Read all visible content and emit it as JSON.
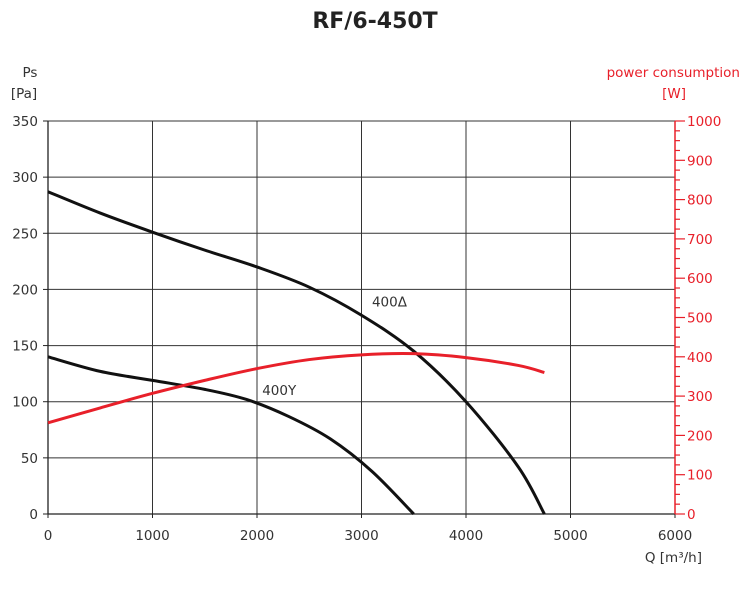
{
  "chart_data": {
    "type": "line",
    "title": "RF/6-450T",
    "x_axis": {
      "label": "Q [m³/h]",
      "range": [
        0,
        6000
      ],
      "ticks": [
        0,
        1000,
        2000,
        3000,
        4000,
        5000,
        6000
      ],
      "grid": true
    },
    "y_axis_left": {
      "label_line1": "Ps",
      "label_line2": "[Pa]",
      "range": [
        0,
        350
      ],
      "ticks": [
        0,
        50,
        100,
        150,
        200,
        250,
        300,
        350
      ],
      "grid": true,
      "color": "#222222"
    },
    "y_axis_right": {
      "label_line1": "power consumption",
      "label_line2": "[W]",
      "range": [
        0,
        1000
      ],
      "ticks": [
        0,
        100,
        200,
        300,
        400,
        500,
        600,
        700,
        800,
        900,
        1000
      ],
      "minor_tick_step": 25,
      "color": "#e8202a"
    },
    "series": [
      {
        "name": "400Δ",
        "axis": "left",
        "color": "#111111",
        "x": [
          0,
          500,
          1000,
          1500,
          2000,
          2500,
          3000,
          3500,
          4000,
          4500,
          4750
        ],
        "y": [
          287,
          268,
          251,
          235,
          220,
          202,
          177,
          145,
          100,
          42,
          0
        ]
      },
      {
        "name": "400Y",
        "axis": "left",
        "color": "#111111",
        "x": [
          0,
          500,
          1000,
          1500,
          1900,
          2300,
          2700,
          3100,
          3500
        ],
        "y": [
          140,
          127,
          119,
          111,
          102,
          87,
          67,
          38,
          0
        ]
      },
      {
        "name": "",
        "axis": "right",
        "color": "#e8202a",
        "x": [
          0,
          500,
          1000,
          1500,
          2000,
          2500,
          3000,
          3500,
          4000,
          4500,
          4750
        ],
        "y": [
          232,
          270,
          307,
          340,
          370,
          393,
          405,
          408,
          398,
          378,
          360
        ]
      }
    ],
    "annotations": [
      {
        "text": "400Δ",
        "x": 3100,
        "y": 185
      },
      {
        "text": "400Y",
        "x": 2050,
        "y": 106
      }
    ]
  }
}
